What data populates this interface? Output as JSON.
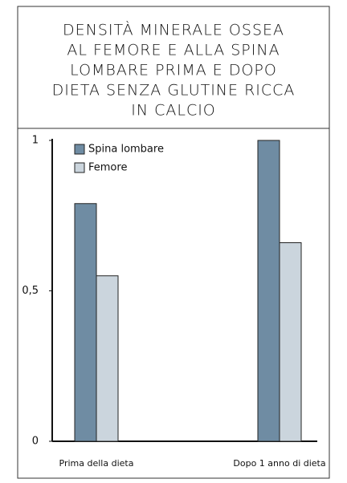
{
  "chart_data": {
    "type": "bar",
    "title": [
      "DENSITÀ MINERALE OSSEA",
      "AL FEMORE E ALLA SPINA",
      "LOMBARE PRIMA E DOPO",
      "DIETA SENZA GLUTINE RICCA",
      "IN CALCIO"
    ],
    "categories": [
      "Prima della dieta",
      "Dopo 1 anno di dieta"
    ],
    "series": [
      {
        "name": "Spina lombare",
        "color": "#6f8ca3",
        "values": [
          0.79,
          1.0
        ]
      },
      {
        "name": "Femore",
        "color": "#cbd5dd",
        "values": [
          0.55,
          0.66
        ]
      }
    ],
    "ylim": [
      0,
      1
    ],
    "yticks": [
      0,
      {
        "value": 0.5,
        "label": "0,5"
      },
      1
    ],
    "legend": "upper left"
  }
}
